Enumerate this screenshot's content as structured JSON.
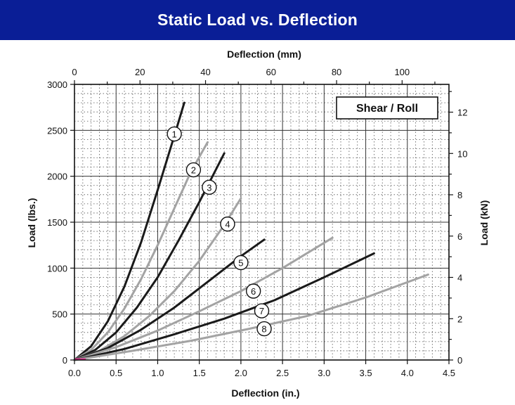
{
  "banner": {
    "title": "Static Load vs. Deflection"
  },
  "chart_data": {
    "type": "line",
    "title": "Static Load vs. Deflection",
    "legend_box": "Shear / Roll",
    "legend_placement": "top-right",
    "grid": true,
    "xlabel": "Deflection (in.)",
    "ylabel": "Load (lbs.)",
    "x2label": "Deflection (mm)",
    "y2label": "Load (kN)",
    "xlim": [
      0,
      4.5
    ],
    "ylim": [
      0,
      3000
    ],
    "x2lim": [
      0,
      114.3
    ],
    "y2lim": [
      0,
      13.345
    ],
    "x_ticks": [
      "0.0",
      "0.5",
      "1.0",
      "1.5",
      "2.0",
      "2.5",
      "3.0",
      "3.5",
      "4.0",
      "4.5"
    ],
    "y_ticks": [
      "0",
      "500",
      "1000",
      "1500",
      "2000",
      "2500",
      "3000"
    ],
    "x2_ticks": [
      "0",
      "20",
      "40",
      "60",
      "80",
      "100"
    ],
    "y2_ticks": [
      "0",
      "2",
      "4",
      "6",
      "8",
      "10",
      "12"
    ],
    "series_colors": {
      "black": "#1a1a1a",
      "gray": "#a3a3a3"
    },
    "series": [
      {
        "label": "1",
        "color": "black",
        "x": [
          0,
          0.2,
          0.4,
          0.6,
          0.8,
          1.0,
          1.2,
          1.32
        ],
        "y": [
          0,
          150,
          420,
          800,
          1280,
          1850,
          2440,
          2800
        ],
        "label_at": [
          1.2,
          2460
        ]
      },
      {
        "label": "2",
        "color": "gray",
        "x": [
          0,
          0.2,
          0.4,
          0.6,
          0.8,
          1.0,
          1.2,
          1.4,
          1.6
        ],
        "y": [
          0,
          110,
          300,
          560,
          880,
          1250,
          1650,
          2050,
          2370
        ],
        "label_at": [
          1.43,
          2070
        ]
      },
      {
        "label": "3",
        "color": "black",
        "x": [
          0,
          0.25,
          0.5,
          0.75,
          1.0,
          1.25,
          1.5,
          1.8
        ],
        "y": [
          0,
          110,
          300,
          570,
          900,
          1300,
          1720,
          2250
        ],
        "label_at": [
          1.62,
          1880
        ]
      },
      {
        "label": "4",
        "color": "gray",
        "x": [
          0,
          0.3,
          0.6,
          0.9,
          1.2,
          1.5,
          1.8,
          2.0
        ],
        "y": [
          0,
          100,
          260,
          480,
          750,
          1080,
          1470,
          1760
        ],
        "label_at": [
          1.84,
          1480
        ]
      },
      {
        "label": "5",
        "color": "black",
        "x": [
          0,
          0.4,
          0.8,
          1.2,
          1.6,
          2.0,
          2.28
        ],
        "y": [
          0,
          130,
          330,
          570,
          850,
          1130,
          1310
        ],
        "label_at": [
          2.0,
          1060
        ]
      },
      {
        "label": "6",
        "color": "gray",
        "x": [
          0,
          0.5,
          1.0,
          1.5,
          2.0,
          2.5,
          3.1
        ],
        "y": [
          0,
          140,
          320,
          530,
          750,
          1000,
          1330
        ],
        "label_at": [
          2.15,
          750
        ]
      },
      {
        "label": "7",
        "color": "black",
        "x": [
          0,
          0.6,
          1.2,
          1.8,
          2.4,
          3.0,
          3.6
        ],
        "y": [
          0,
          120,
          280,
          450,
          650,
          900,
          1160
        ],
        "label_at": [
          2.25,
          535
        ]
      },
      {
        "label": "8",
        "color": "gray",
        "x": [
          0,
          0.7,
          1.4,
          2.1,
          2.8,
          3.5,
          4.25
        ],
        "y": [
          0,
          100,
          210,
          340,
          480,
          680,
          930
        ],
        "label_at": [
          2.28,
          340
        ]
      }
    ]
  }
}
